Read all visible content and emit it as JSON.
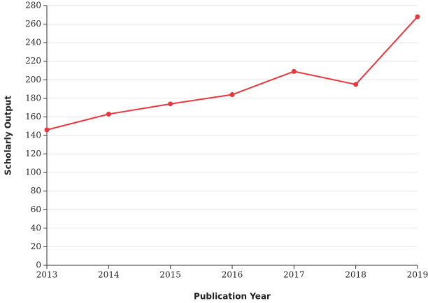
{
  "chart_data": {
    "type": "line",
    "x_label": "Publication Year",
    "y_label": "Scholarly Output",
    "x": [
      2013,
      2014,
      2015,
      2016,
      2017,
      2018,
      2019
    ],
    "values": [
      146,
      163,
      174,
      184,
      209,
      195,
      268
    ],
    "color": "#e8383d",
    "xlim": [
      2013,
      2019
    ],
    "xticks": [
      2013,
      2014,
      2015,
      2016,
      2017,
      2018,
      2019
    ],
    "ylim": [
      0,
      280
    ],
    "yticks": [
      0,
      20,
      40,
      60,
      80,
      100,
      120,
      140,
      160,
      180,
      200,
      220,
      240,
      260,
      280
    ],
    "grid": true
  }
}
